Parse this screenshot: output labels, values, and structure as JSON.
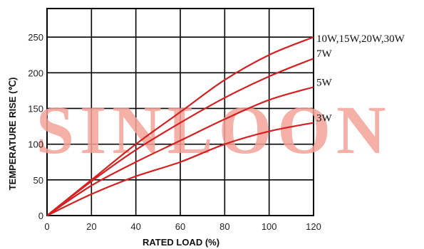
{
  "chart_data": {
    "type": "line",
    "xlabel": "RATED LOAD (%)",
    "ylabel": "TEMPERATURE RISE (℃)",
    "xlim": [
      0,
      120
    ],
    "ylim": [
      0,
      290
    ],
    "x_ticks": [
      0,
      20,
      40,
      60,
      80,
      100,
      120
    ],
    "y_ticks": [
      0,
      50,
      100,
      150,
      200,
      250
    ],
    "grid": true,
    "series": [
      {
        "name": "10W,15W,20W,30W",
        "x": [
          0,
          20,
          40,
          60,
          80,
          100,
          120
        ],
        "y": [
          0,
          50,
          100,
          145,
          190,
          225,
          250
        ]
      },
      {
        "name": "7W",
        "x": [
          0,
          20,
          40,
          60,
          80,
          100,
          120
        ],
        "y": [
          0,
          48,
          92,
          130,
          165,
          195,
          220
        ]
      },
      {
        "name": "5W",
        "x": [
          0,
          20,
          40,
          60,
          80,
          100,
          120
        ],
        "y": [
          0,
          42,
          75,
          105,
          135,
          162,
          180
        ]
      },
      {
        "name": "3W",
        "x": [
          0,
          20,
          40,
          60,
          80,
          100,
          120
        ],
        "y": [
          0,
          30,
          55,
          75,
          100,
          118,
          130
        ]
      }
    ],
    "line_color": "#d42020",
    "watermark_text": "SINLOON",
    "watermark_color": "#f4a39a"
  }
}
